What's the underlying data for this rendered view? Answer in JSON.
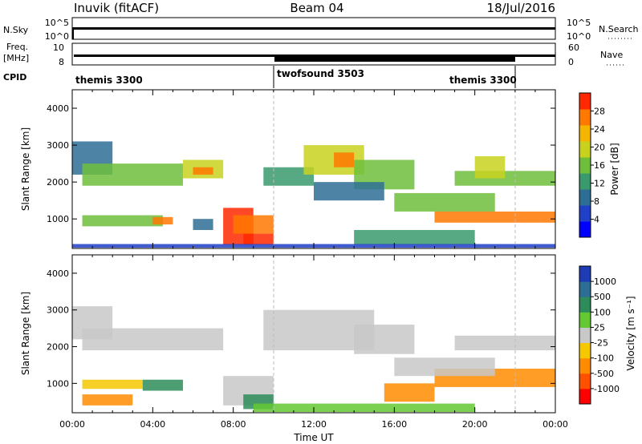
{
  "header": {
    "station": "Inuvik (fitACF)",
    "beam": "Beam 04",
    "date": "18/Jul/2016"
  },
  "strip_labels": {
    "nsky": "N.Sky",
    "nsky_ticks": [
      "10^5",
      "10^0"
    ],
    "nsearch": "N.Search",
    "nsearch_ticks": [
      "10^5",
      "10^0"
    ],
    "freq_left": "Freq.",
    "freq_unit": "[MHz]",
    "freq_ticks": [
      "10",
      "8"
    ],
    "nave": "Nave",
    "nave_ticks": [
      "60",
      "0"
    ],
    "cpid": "CPID"
  },
  "cpid_segments": [
    {
      "label": "themis 3300",
      "start_h": 0,
      "end_h": 10
    },
    {
      "label": "twofsound 3503",
      "start_h": 10,
      "end_h": 22
    },
    {
      "label": "themis 3300",
      "start_h": 22,
      "end_h": 24
    }
  ],
  "chart_data": [
    {
      "type": "heatmap",
      "name": "power",
      "ylabel": "Slant Range [km]",
      "ylim": [
        200,
        4500
      ],
      "yticks": [
        "1000",
        "2000",
        "3000",
        "4000"
      ],
      "xlim": [
        0,
        24
      ],
      "colorbar_label": "Power [dB]",
      "colorbar_ticks": [
        "4",
        "8",
        "12",
        "16",
        "20",
        "24",
        "28"
      ],
      "colorbar_colors": [
        "#0000ff",
        "#2040c8",
        "#2e6e96",
        "#3a9a6e",
        "#6ebe3c",
        "#c8d21e",
        "#f5b400",
        "#ff7800",
        "#ff2800"
      ],
      "bands": [
        {
          "t0": 0.0,
          "t1": 2.0,
          "r0": 2200,
          "r1": 3100,
          "color": "#2e6e96"
        },
        {
          "t0": 0.5,
          "t1": 5.5,
          "r0": 1900,
          "r1": 2500,
          "color": "#6ebe3c"
        },
        {
          "t0": 5.5,
          "t1": 7.5,
          "r0": 2100,
          "r1": 2600,
          "color": "#c8d21e"
        },
        {
          "t0": 6.0,
          "t1": 7.0,
          "r0": 2200,
          "r1": 2400,
          "color": "#ff7800"
        },
        {
          "t0": 0.5,
          "t1": 4.5,
          "r0": 800,
          "r1": 1100,
          "color": "#6ebe3c"
        },
        {
          "t0": 4.0,
          "t1": 5.0,
          "r0": 850,
          "r1": 1050,
          "color": "#ff7800"
        },
        {
          "t0": 6.0,
          "t1": 7.0,
          "r0": 700,
          "r1": 1000,
          "color": "#2e6e96"
        },
        {
          "t0": 7.5,
          "t1": 9.0,
          "r0": 300,
          "r1": 1300,
          "color": "#ff2800"
        },
        {
          "t0": 8.0,
          "t1": 10.0,
          "r0": 600,
          "r1": 1100,
          "color": "#ff7800"
        },
        {
          "t0": 8.5,
          "t1": 10.0,
          "r0": 300,
          "r1": 600,
          "color": "#ff2800"
        },
        {
          "t0": 9.5,
          "t1": 12.0,
          "r0": 1900,
          "r1": 2400,
          "color": "#3a9a6e"
        },
        {
          "t0": 11.5,
          "t1": 14.5,
          "r0": 2200,
          "r1": 3000,
          "color": "#c8d21e"
        },
        {
          "t0": 13.0,
          "t1": 14.0,
          "r0": 2400,
          "r1": 2800,
          "color": "#ff7800"
        },
        {
          "t0": 14.0,
          "t1": 17.0,
          "r0": 1800,
          "r1": 2600,
          "color": "#6ebe3c"
        },
        {
          "t0": 12.0,
          "t1": 15.5,
          "r0": 1500,
          "r1": 2000,
          "color": "#2e6e96"
        },
        {
          "t0": 16.0,
          "t1": 21.0,
          "r0": 1200,
          "r1": 1700,
          "color": "#6ebe3c"
        },
        {
          "t0": 18.0,
          "t1": 24.0,
          "r0": 900,
          "r1": 1200,
          "color": "#ff7800"
        },
        {
          "t0": 19.0,
          "t1": 24.0,
          "r0": 1900,
          "r1": 2300,
          "color": "#6ebe3c"
        },
        {
          "t0": 20.0,
          "t1": 21.5,
          "r0": 2100,
          "r1": 2700,
          "color": "#c8d21e"
        },
        {
          "t0": 14.0,
          "t1": 20.0,
          "r0": 300,
          "r1": 700,
          "color": "#3a9a6e"
        },
        {
          "t0": 0.0,
          "t1": 24.0,
          "r0": 220,
          "r1": 320,
          "color": "#2040c8"
        }
      ]
    },
    {
      "type": "heatmap",
      "name": "velocity",
      "ylabel": "Slant Range [km]",
      "ylim": [
        200,
        4500
      ],
      "yticks": [
        "1000",
        "2000",
        "3000",
        "4000"
      ],
      "xlim": [
        0,
        24
      ],
      "xticks": [
        "00:00",
        "04:00",
        "08:00",
        "12:00",
        "16:00",
        "20:00",
        "00:00"
      ],
      "xlabel": "Time UT",
      "colorbar_label": "Velocity [m s⁻¹]",
      "colorbar_ticks": [
        "1000",
        "500",
        "100",
        "25",
        "-25",
        "-100",
        "-500",
        "-1000"
      ],
      "colorbar_colors": [
        "#1e3cb4",
        "#2e6e96",
        "#2e8c5a",
        "#64c832",
        "#c8c8c8",
        "#f5c800",
        "#ff8c00",
        "#ff5000",
        "#ff0000"
      ],
      "bands": [
        {
          "t0": 0.0,
          "t1": 2.0,
          "r0": 2200,
          "r1": 3100,
          "color": "#c8c8c8"
        },
        {
          "t0": 0.5,
          "t1": 7.5,
          "r0": 1900,
          "r1": 2500,
          "color": "#c8c8c8"
        },
        {
          "t0": 0.5,
          "t1": 3.5,
          "r0": 850,
          "r1": 1100,
          "color": "#f5c800"
        },
        {
          "t0": 3.5,
          "t1": 5.5,
          "r0": 800,
          "r1": 1100,
          "color": "#2e8c5a"
        },
        {
          "t0": 0.5,
          "t1": 3.0,
          "r0": 400,
          "r1": 700,
          "color": "#ff8c00"
        },
        {
          "t0": 7.5,
          "t1": 10.0,
          "r0": 400,
          "r1": 1200,
          "color": "#c8c8c8"
        },
        {
          "t0": 8.5,
          "t1": 10.0,
          "r0": 300,
          "r1": 700,
          "color": "#2e8c5a"
        },
        {
          "t0": 9.5,
          "t1": 15.0,
          "r0": 1900,
          "r1": 3000,
          "color": "#c8c8c8"
        },
        {
          "t0": 14.0,
          "t1": 17.0,
          "r0": 1800,
          "r1": 2600,
          "color": "#c8c8c8"
        },
        {
          "t0": 15.5,
          "t1": 18.0,
          "r0": 500,
          "r1": 1000,
          "color": "#ff8c00"
        },
        {
          "t0": 18.0,
          "t1": 24.0,
          "r0": 900,
          "r1": 1400,
          "color": "#ff8c00"
        },
        {
          "t0": 16.0,
          "t1": 21.0,
          "r0": 1200,
          "r1": 1700,
          "color": "#c8c8c8"
        },
        {
          "t0": 19.0,
          "t1": 24.0,
          "r0": 1900,
          "r1": 2300,
          "color": "#c8c8c8"
        },
        {
          "t0": 9.0,
          "t1": 20.0,
          "r0": 220,
          "r1": 450,
          "color": "#64c832"
        }
      ]
    }
  ]
}
